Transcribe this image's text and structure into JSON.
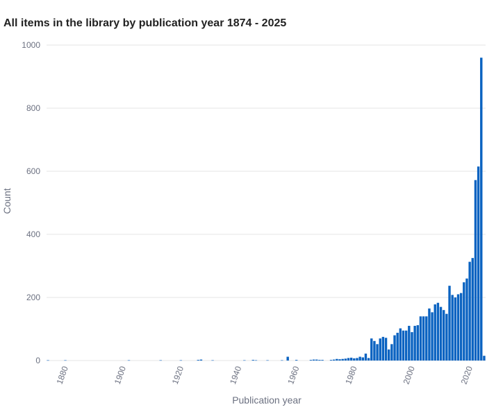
{
  "chart_data": {
    "type": "bar",
    "title": "All items in the library by publication year 1874 - 2025",
    "xlabel": "Publication year",
    "ylabel": "Count",
    "ylim": [
      0,
      1000
    ],
    "xlim": [
      1874,
      2025
    ],
    "y_ticks": [
      "0",
      "200",
      "400",
      "600",
      "800",
      "1000"
    ],
    "x_ticks": [
      "1880",
      "1900",
      "1920",
      "1940",
      "1960",
      "1980",
      "2000",
      "2020"
    ],
    "grid": true,
    "legend": "none",
    "bar_color": "#0b63c1",
    "x": [
      1874,
      1880,
      1902,
      1913,
      1920,
      1926,
      1927,
      1931,
      1942,
      1945,
      1946,
      1950,
      1955,
      1957,
      1960,
      1965,
      1966,
      1967,
      1968,
      1969,
      1972,
      1973,
      1974,
      1975,
      1976,
      1977,
      1978,
      1979,
      1980,
      1981,
      1982,
      1983,
      1984,
      1985,
      1986,
      1987,
      1988,
      1989,
      1990,
      1991,
      1992,
      1993,
      1994,
      1995,
      1996,
      1997,
      1998,
      1999,
      2000,
      2001,
      2002,
      2003,
      2004,
      2005,
      2006,
      2007,
      2008,
      2009,
      2010,
      2011,
      2012,
      2013,
      2014,
      2015,
      2016,
      2017,
      2018,
      2019,
      2020,
      2021,
      2022,
      2023,
      2024,
      2025
    ],
    "values": [
      1,
      1,
      1,
      1,
      1,
      2,
      3,
      1,
      1,
      2,
      1,
      1,
      1,
      12,
      2,
      2,
      3,
      3,
      2,
      2,
      2,
      3,
      5,
      4,
      5,
      6,
      8,
      9,
      7,
      8,
      12,
      10,
      22,
      8,
      70,
      62,
      52,
      70,
      75,
      72,
      35,
      52,
      80,
      88,
      102,
      95,
      95,
      110,
      90,
      110,
      112,
      140,
      140,
      140,
      165,
      153,
      178,
      183,
      170,
      160,
      148,
      237,
      208,
      200,
      210,
      214,
      248,
      260,
      313,
      325,
      572,
      615,
      960,
      15
    ]
  }
}
